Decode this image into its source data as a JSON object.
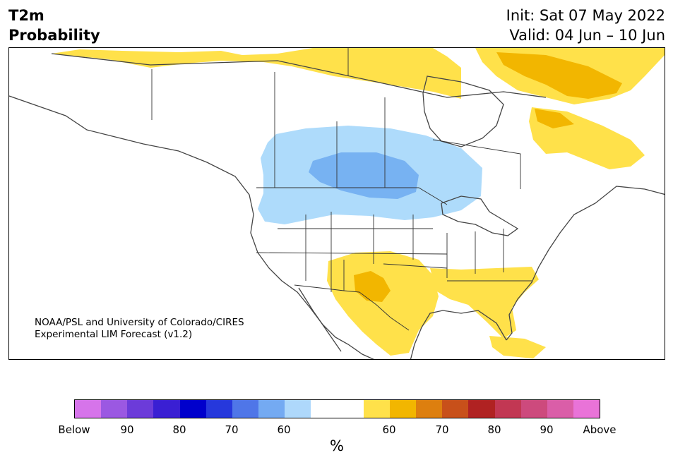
{
  "header": {
    "variable": "T2m",
    "product": "Probability",
    "init": "Init: Sat 07 May 2022",
    "valid": "Valid: 04 Jun – 10 Jun"
  },
  "credit": {
    "line1": "NOAA/PSL and University of Colorado/CIRES",
    "line2": "Experimental LIM Forecast (v1.2)"
  },
  "colorbar": {
    "unit": "%",
    "colors": [
      "#d674ea",
      "#9b58e2",
      "#6c3bd9",
      "#3a1fd3",
      "#0000cc",
      "#2638dc",
      "#4f76e8",
      "#74aaf2",
      "#aed8fb",
      "#ffffff",
      "#ffffff",
      "#ffe14a",
      "#f2b600",
      "#dd7f0f",
      "#c8501a",
      "#b02222",
      "#c23753",
      "#cd4a7d",
      "#da5ea8",
      "#e973d8"
    ],
    "ticks": [
      "Below",
      "90",
      "80",
      "70",
      "60",
      "60",
      "70",
      "80",
      "90",
      "Above"
    ]
  },
  "map": {
    "region": "North America",
    "colors": {
      "cold60": "#aedbfb",
      "cold70": "#77b2f2",
      "warm60": "#ffe14a",
      "warm70": "#f2b600",
      "coast": "#444444",
      "border": "#333333"
    }
  }
}
